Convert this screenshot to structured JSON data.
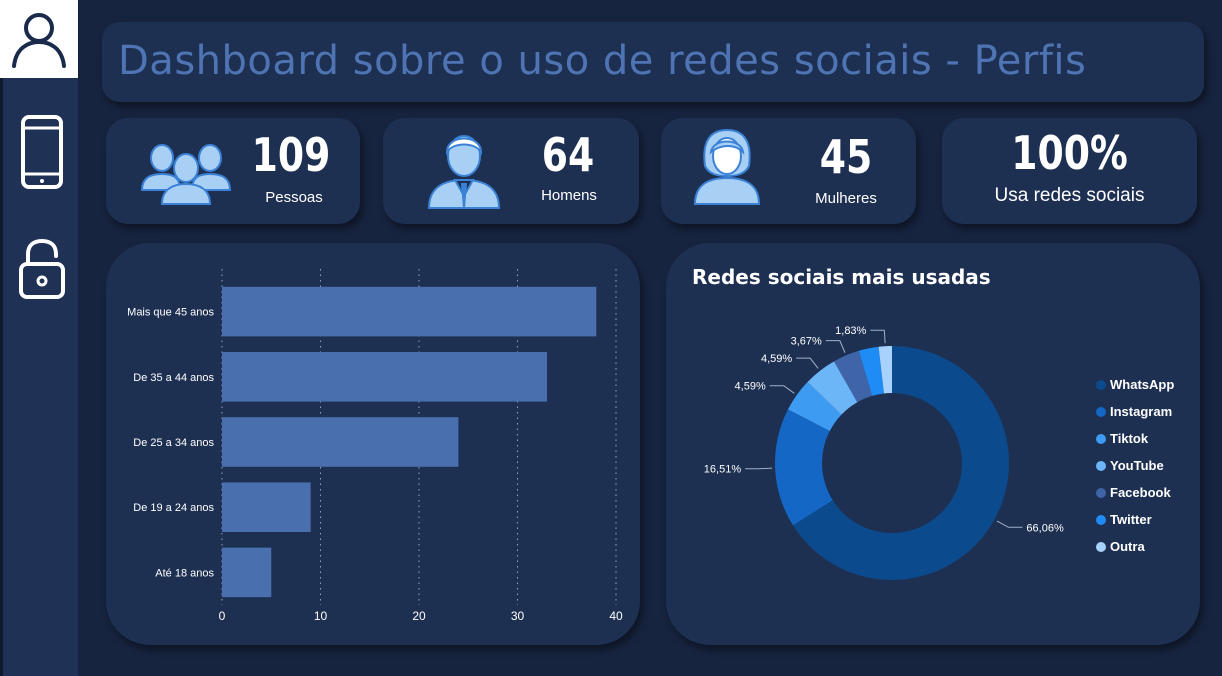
{
  "header": {
    "title": "Dashboard sobre o uso de redes sociais - Perfis"
  },
  "nav": {
    "items": [
      {
        "name": "profile",
        "icon": "user-icon"
      },
      {
        "name": "device",
        "icon": "smartphone-icon"
      },
      {
        "name": "security",
        "icon": "unlock-icon"
      }
    ]
  },
  "kpis": {
    "pessoas": {
      "value": "109",
      "label": "Pessoas",
      "icon": "group-icon"
    },
    "homens": {
      "value": "64",
      "label": "Homens",
      "icon": "man-icon"
    },
    "mulheres": {
      "value": "45",
      "label": "Mulheres",
      "icon": "woman-icon"
    },
    "usa": {
      "value": "100%",
      "label": "Usa redes sociais"
    }
  },
  "colors": {
    "background": "#172440",
    "card": "#1e3052",
    "title": "#4f74b4",
    "bar": "#4a6fae",
    "icon_fill": "#a8d0f5",
    "icon_stroke": "#3b82d6"
  },
  "donut_title": "Redes sociais mais usadas",
  "chart_data": [
    {
      "type": "bar",
      "orientation": "horizontal",
      "categories": [
        "Mais que 45 anos",
        "De 35 a 44 anos",
        "De 25 a 34 anos",
        "De 19 a 24 anos",
        "Até 18 anos"
      ],
      "values": [
        38,
        33,
        24,
        9,
        5
      ],
      "xlim": [
        0,
        40
      ],
      "xticks": [
        "0",
        "10",
        "20",
        "30",
        "40"
      ],
      "grid": "vertical dotted",
      "color": "#4a6fae"
    },
    {
      "type": "pie",
      "donut": true,
      "title": "Redes sociais mais usadas",
      "legend_position": "right",
      "slices": [
        {
          "name": "WhatsApp",
          "value": 66.06,
          "label": "66,06%",
          "color": "#0b4a8c"
        },
        {
          "name": "Instagram",
          "value": 16.51,
          "label": "16,51%",
          "color": "#1467c4"
        },
        {
          "name": "Tiktok",
          "value": 4.59,
          "label": "4,59%",
          "color": "#3d9bf2"
        },
        {
          "name": "YouTube",
          "value": 4.59,
          "label": "4,59%",
          "color": "#6cb6f7"
        },
        {
          "name": "Facebook",
          "value": 3.67,
          "label": "3,67%",
          "color": "#3f65a8"
        },
        {
          "name": "Twitter",
          "value": 2.75,
          "label": "",
          "color": "#1f8cf5"
        },
        {
          "name": "Outra",
          "value": 1.83,
          "label": "1,83%",
          "color": "#a8d2fb"
        }
      ]
    }
  ]
}
